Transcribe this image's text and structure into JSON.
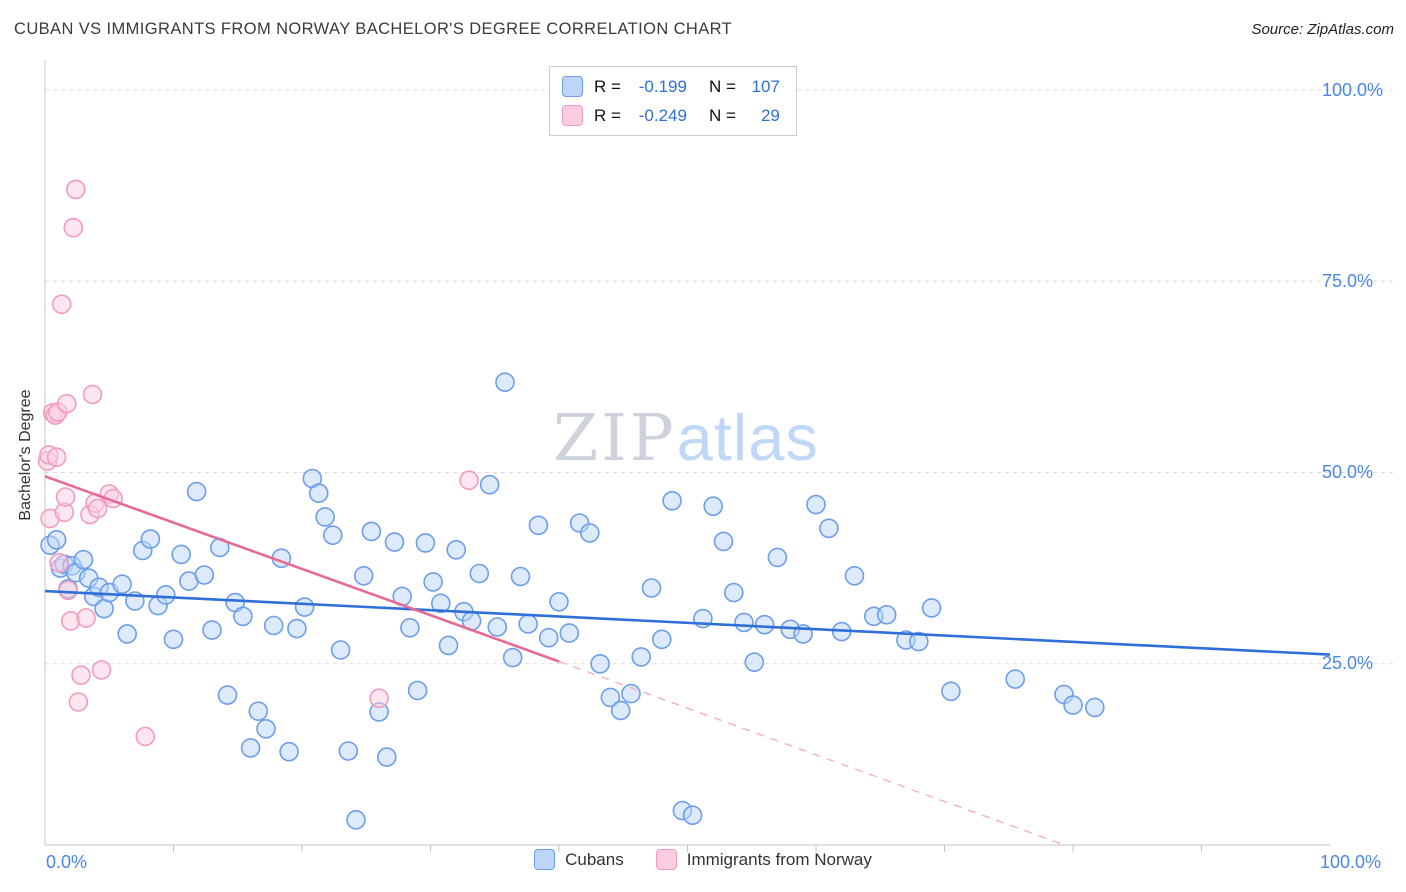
{
  "header": {
    "title": "CUBAN VS IMMIGRANTS FROM NORWAY BACHELOR'S DEGREE CORRELATION CHART",
    "source": "Source: ZipAtlas.com"
  },
  "watermark": {
    "part1": "ZIP",
    "part2": "atlas"
  },
  "axes": {
    "y_label": "Bachelor's Degree",
    "y_ticks": [
      {
        "label": "100.0%",
        "value": 100
      },
      {
        "label": "75.0%",
        "value": 75
      },
      {
        "label": "50.0%",
        "value": 50
      },
      {
        "label": "25.0%",
        "value": 25
      }
    ],
    "x_min_label": "0.0%",
    "x_max_label": "100.0%"
  },
  "legend_box": {
    "rows": [
      {
        "series": "Cubans",
        "r_label": "R =",
        "r_value": "-0.199",
        "n_label": "N =",
        "n_value": "107"
      },
      {
        "series": "Immigrants from Norway",
        "r_label": "R =",
        "r_value": "-0.249",
        "n_label": "N =",
        "n_value": "29"
      }
    ]
  },
  "bottom_legend": {
    "items": [
      {
        "label": "Cubans"
      },
      {
        "label": "Immigrants from Norway"
      }
    ]
  },
  "colors": {
    "accent_blue_text": "#4a86e8",
    "gridline": "#dcdcdc",
    "axis": "#c4c4c4",
    "title_text": "#3b3b3b",
    "watermark_gray": "#ced3da",
    "watermark_blue": "#c0d8f6"
  },
  "chart_data": {
    "type": "scatter",
    "title": "CUBAN VS IMMIGRANTS FROM NORWAY BACHELOR'S DEGREE CORRELATION CHART",
    "xlabel": "",
    "ylabel": "Bachelor's Degree",
    "xlim": [
      0,
      100
    ],
    "ylim": [
      0,
      100
    ],
    "x_units": "percent",
    "y_units": "percent",
    "gridlines": [
      100,
      75,
      50,
      25
    ],
    "legend_position": "bottom-center",
    "series": [
      {
        "name": "Cubans",
        "R": -0.199,
        "N": 107,
        "marker_color": "#6d9eeb",
        "marker_fill": "#bcd5f8",
        "points": [
          [
            0.4,
            40.5
          ],
          [
            0.9,
            41.2
          ],
          [
            1.2,
            37.5
          ],
          [
            1.5,
            38.0
          ],
          [
            1.8,
            34.8
          ],
          [
            2.1,
            37.8
          ],
          [
            2.4,
            36.9
          ],
          [
            3.0,
            38.6
          ],
          [
            3.4,
            36.2
          ],
          [
            3.8,
            33.8
          ],
          [
            4.2,
            35.0
          ],
          [
            4.6,
            32.2
          ],
          [
            5.0,
            34.3
          ],
          [
            6.0,
            35.4
          ],
          [
            6.4,
            28.9
          ],
          [
            7.0,
            33.2
          ],
          [
            7.6,
            39.8
          ],
          [
            8.2,
            41.3
          ],
          [
            8.8,
            32.6
          ],
          [
            9.4,
            34.0
          ],
          [
            10.0,
            28.2
          ],
          [
            10.6,
            39.3
          ],
          [
            11.2,
            35.8
          ],
          [
            11.8,
            47.5
          ],
          [
            12.4,
            36.6
          ],
          [
            13.0,
            29.4
          ],
          [
            13.6,
            40.2
          ],
          [
            14.2,
            20.9
          ],
          [
            14.8,
            33.0
          ],
          [
            15.4,
            31.2
          ],
          [
            16.0,
            14.0
          ],
          [
            16.6,
            18.8
          ],
          [
            17.2,
            16.5
          ],
          [
            17.8,
            30.0
          ],
          [
            18.4,
            38.8
          ],
          [
            19.0,
            13.5
          ],
          [
            19.6,
            29.6
          ],
          [
            20.2,
            32.4
          ],
          [
            20.8,
            49.2
          ],
          [
            21.3,
            47.3
          ],
          [
            21.8,
            44.2
          ],
          [
            22.4,
            41.8
          ],
          [
            23.0,
            26.8
          ],
          [
            23.6,
            13.6
          ],
          [
            24.2,
            4.6
          ],
          [
            24.8,
            36.5
          ],
          [
            25.4,
            42.3
          ],
          [
            26.0,
            18.7
          ],
          [
            26.6,
            12.8
          ],
          [
            27.2,
            40.9
          ],
          [
            27.8,
            33.8
          ],
          [
            28.4,
            29.7
          ],
          [
            29.0,
            21.5
          ],
          [
            29.6,
            40.8
          ],
          [
            30.2,
            35.7
          ],
          [
            30.8,
            32.9
          ],
          [
            31.4,
            27.4
          ],
          [
            32.0,
            39.9
          ],
          [
            32.6,
            31.8
          ],
          [
            33.2,
            30.6
          ],
          [
            33.8,
            36.8
          ],
          [
            34.6,
            48.4
          ],
          [
            35.2,
            29.8
          ],
          [
            35.8,
            61.8
          ],
          [
            36.4,
            25.8
          ],
          [
            37.0,
            36.4
          ],
          [
            37.6,
            30.2
          ],
          [
            38.4,
            43.1
          ],
          [
            39.2,
            28.4
          ],
          [
            40.0,
            33.1
          ],
          [
            40.8,
            29.0
          ],
          [
            41.6,
            43.4
          ],
          [
            42.4,
            42.1
          ],
          [
            43.2,
            25.0
          ],
          [
            44.0,
            20.6
          ],
          [
            44.8,
            18.9
          ],
          [
            45.6,
            21.1
          ],
          [
            46.4,
            25.9
          ],
          [
            47.2,
            34.9
          ],
          [
            48.0,
            28.2
          ],
          [
            48.8,
            46.3
          ],
          [
            49.6,
            5.8
          ],
          [
            50.4,
            5.2
          ],
          [
            51.2,
            30.9
          ],
          [
            52.0,
            45.6
          ],
          [
            52.8,
            41.0
          ],
          [
            53.6,
            34.3
          ],
          [
            54.4,
            30.4
          ],
          [
            55.2,
            25.2
          ],
          [
            56.0,
            30.1
          ],
          [
            57.0,
            38.9
          ],
          [
            58.0,
            29.5
          ],
          [
            59.0,
            28.9
          ],
          [
            60.0,
            45.8
          ],
          [
            61.0,
            42.7
          ],
          [
            62.0,
            29.2
          ],
          [
            63.0,
            36.5
          ],
          [
            64.5,
            31.2
          ],
          [
            65.5,
            31.4
          ],
          [
            67.0,
            28.1
          ],
          [
            68.0,
            27.9
          ],
          [
            69.0,
            32.3
          ],
          [
            70.5,
            21.4
          ],
          [
            75.5,
            23.0
          ],
          [
            79.3,
            21.0
          ],
          [
            80.0,
            19.6
          ],
          [
            81.7,
            19.3
          ]
        ]
      },
      {
        "name": "Immigrants from Norway",
        "R": -0.249,
        "N": 29,
        "marker_color": "#f29cbe",
        "marker_fill": "#fbcddf",
        "points": [
          [
            0.2,
            51.5
          ],
          [
            0.3,
            52.3
          ],
          [
            0.4,
            44.0
          ],
          [
            0.6,
            57.8
          ],
          [
            0.8,
            57.5
          ],
          [
            0.9,
            52.0
          ],
          [
            1.0,
            57.9
          ],
          [
            1.1,
            38.2
          ],
          [
            1.3,
            72.0
          ],
          [
            1.5,
            44.8
          ],
          [
            1.6,
            46.8
          ],
          [
            1.7,
            59.0
          ],
          [
            1.8,
            34.6
          ],
          [
            2.0,
            30.6
          ],
          [
            2.2,
            82.0
          ],
          [
            2.4,
            87.0
          ],
          [
            2.6,
            20.0
          ],
          [
            2.8,
            23.5
          ],
          [
            3.2,
            31.0
          ],
          [
            3.5,
            44.5
          ],
          [
            3.7,
            60.2
          ],
          [
            3.9,
            46.0
          ],
          [
            4.1,
            45.3
          ],
          [
            4.4,
            24.2
          ],
          [
            5.0,
            47.2
          ],
          [
            5.3,
            46.6
          ],
          [
            7.8,
            15.5
          ],
          [
            26.0,
            20.5
          ],
          [
            33.0,
            49.0
          ]
        ]
      }
    ],
    "trend_lines": [
      {
        "series": "Cubans",
        "x": [
          0,
          100
        ],
        "y": [
          34.5,
          26.2
        ],
        "style": "solid",
        "color": "#2e6fd8"
      },
      {
        "series": "Immigrants from Norway",
        "x": [
          0,
          40
        ],
        "y": [
          49.5,
          25.3
        ],
        "style": "solid",
        "color": "#e66a95"
      },
      {
        "series": "Immigrants from Norway",
        "x": [
          40,
          79
        ],
        "y": [
          25.3,
          1.5
        ],
        "style": "dashed",
        "color": "#f4afc9"
      }
    ]
  }
}
